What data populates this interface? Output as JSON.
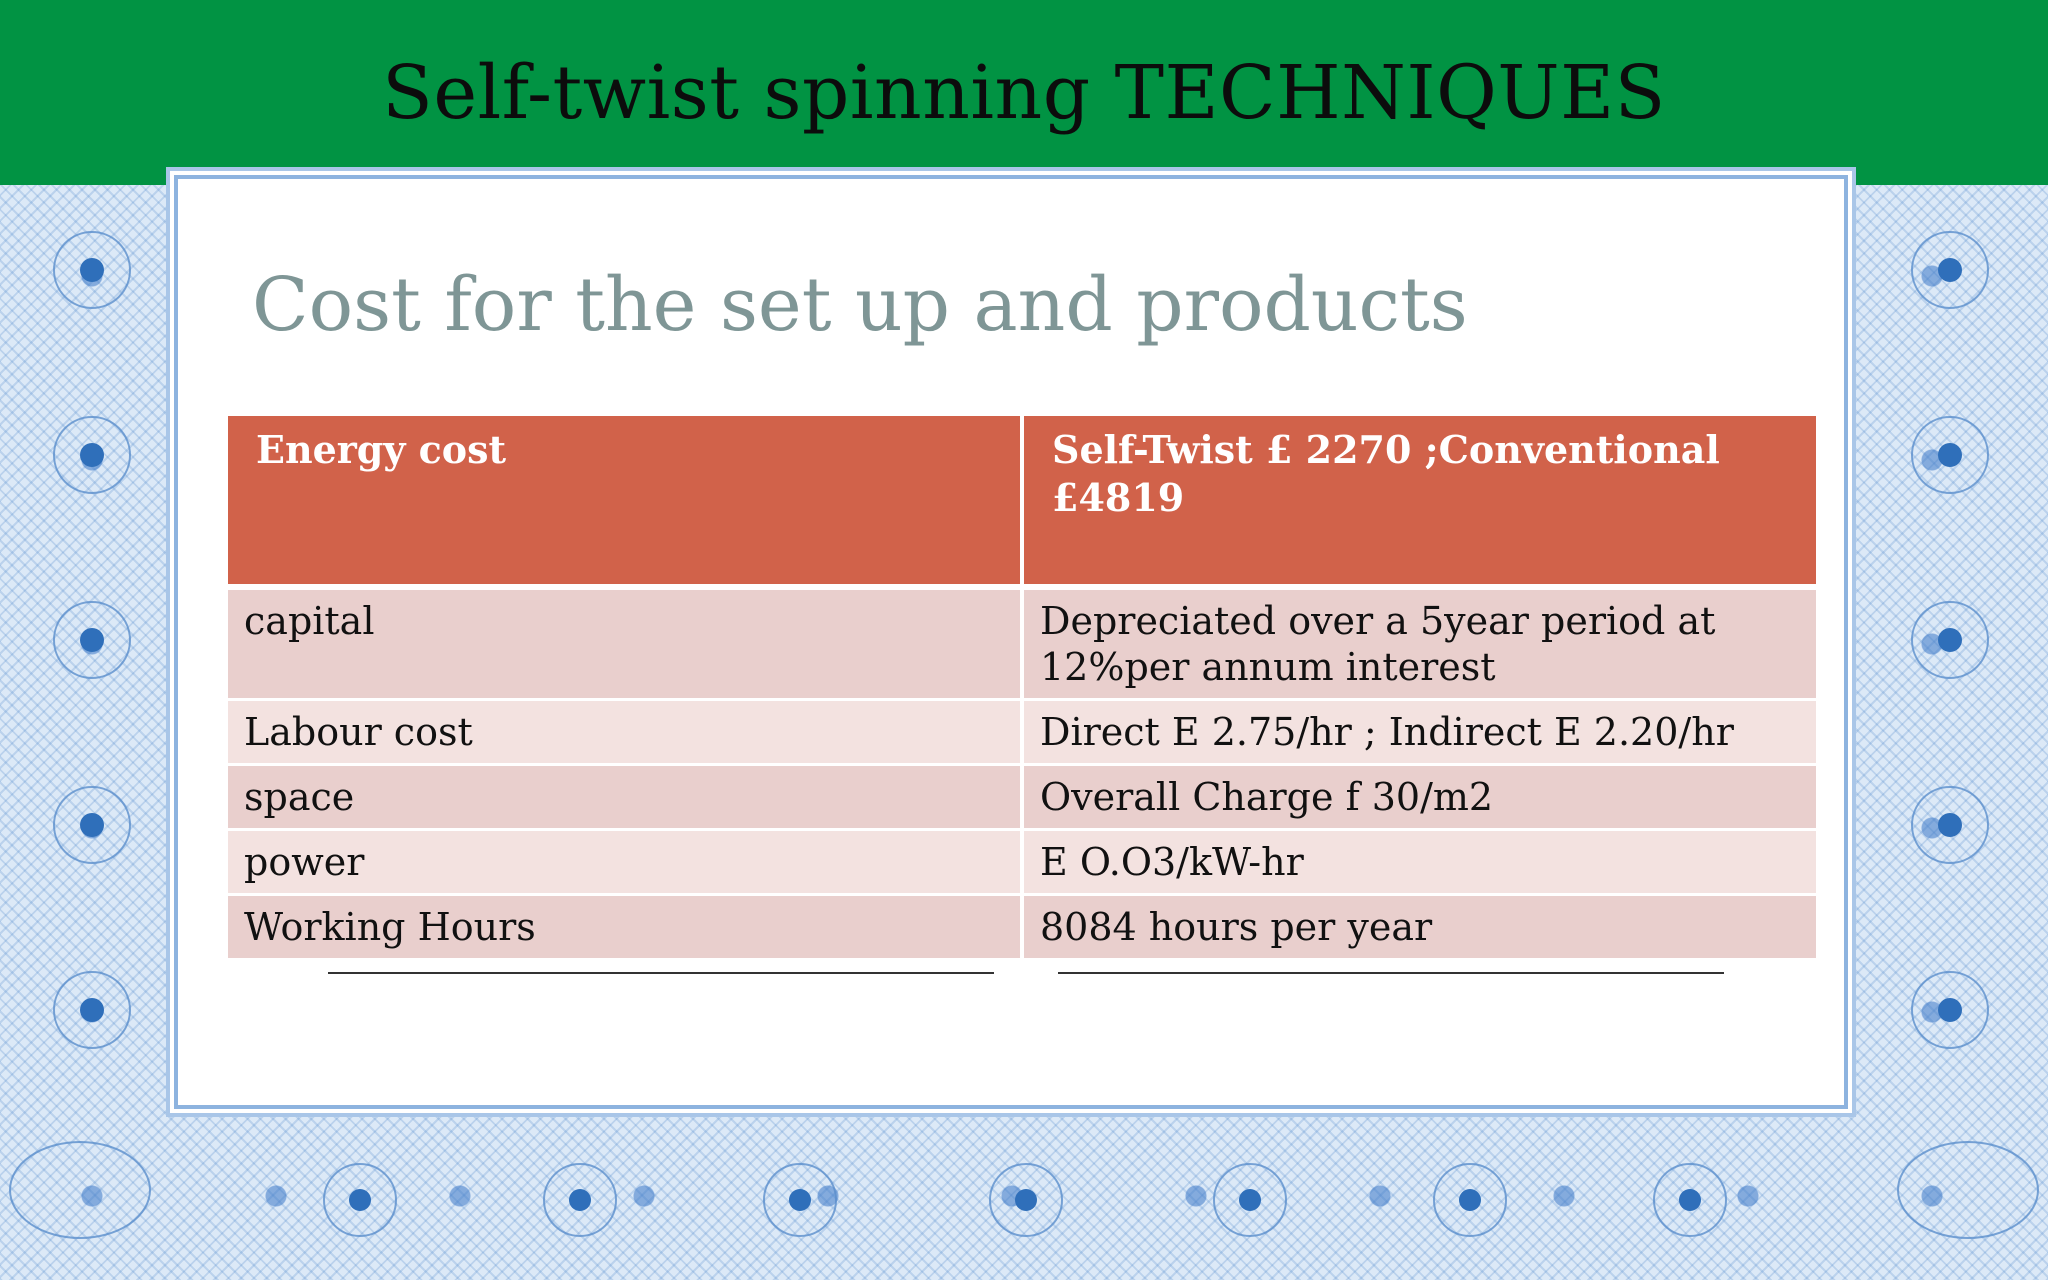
{
  "header": {
    "title": "Self-twist spinning TECHNIQUES"
  },
  "slide": {
    "subtitle": "Cost for the set up and products"
  },
  "table": {
    "header": [
      "Energy cost",
      "Self-Twist £ 2270  ;Conventional £4819"
    ],
    "rows": [
      [
        "capital",
        "Depreciated over a 5year period at 12%per annum interest"
      ],
      [
        "Labour cost",
        "Direct E 2.75/hr ; Indirect E 2.20/hr"
      ],
      [
        "space",
        "Overall Charge f 30/m2"
      ],
      [
        "power",
        "E O.O3/kW-hr"
      ],
      [
        "Working Hours",
        "8084 hours per year"
      ]
    ]
  },
  "colors": {
    "title_bar": "#019343",
    "table_header": "#d1624a",
    "row_odd": "#e9cfcd",
    "row_even": "#f3e2e0",
    "subtitle": "#7f9696",
    "border_blue": "#4a86c8"
  },
  "decorations": [
    "guilloche-border",
    "flower-rosette-icon"
  ]
}
